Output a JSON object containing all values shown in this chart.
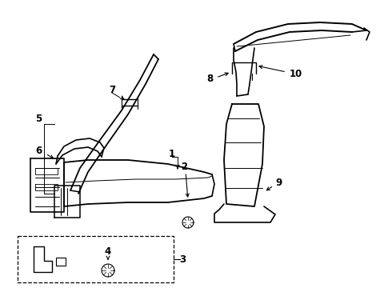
{
  "background_color": "#ffffff",
  "line_color": "#000000",
  "figsize": [
    4.9,
    3.6
  ],
  "dpi": 100
}
